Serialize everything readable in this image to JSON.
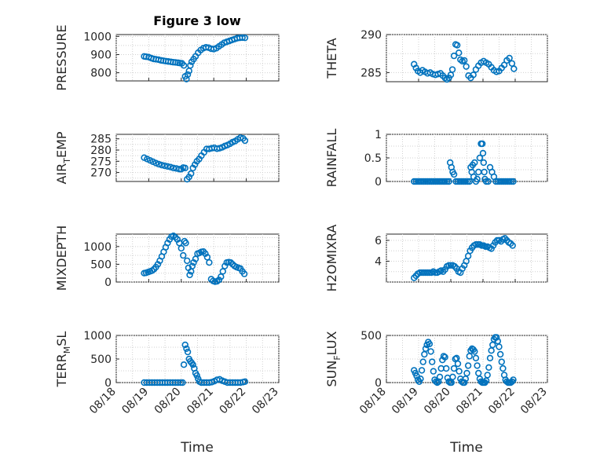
{
  "figure": {
    "title": "Figure 3 low",
    "xlabel": "Time",
    "xticks": [
      "08/18",
      "08/19",
      "08/20",
      "08/21",
      "08/22",
      "08/23"
    ]
  },
  "chart_data": [
    {
      "id": "pressure",
      "type": "scatter",
      "title": "Figure 3 low",
      "ylabel": "PRESSURE",
      "ylabel_sub": "",
      "xlim": [
        0,
        5
      ],
      "ylim": [
        755,
        1010
      ],
      "yticks": [
        "800",
        "900",
        "1000"
      ],
      "ytick_values": [
        800,
        900,
        1000
      ],
      "grid": true,
      "marker": "circle",
      "x": [
        0.86,
        0.92,
        1.0,
        1.08,
        1.15,
        1.22,
        1.3,
        1.38,
        1.45,
        1.52,
        1.6,
        1.68,
        1.75,
        1.82,
        1.9,
        1.96,
        2.02,
        2.08,
        2.12,
        2.16,
        2.2,
        2.24,
        2.28,
        2.32,
        2.38,
        2.44,
        2.52,
        2.6,
        2.68,
        2.76,
        2.84,
        2.92,
        3.0,
        3.08,
        3.16,
        3.24,
        3.32,
        3.4,
        3.48,
        3.56,
        3.64,
        3.72,
        3.8,
        3.88,
        3.96
      ],
      "y": [
        890,
        888,
        886,
        880,
        876,
        874,
        872,
        868,
        866,
        864,
        862,
        860,
        858,
        857,
        855,
        853,
        852,
        840,
        780,
        765,
        790,
        810,
        840,
        860,
        875,
        890,
        910,
        925,
        935,
        940,
        938,
        932,
        930,
        935,
        945,
        955,
        965,
        970,
        975,
        980,
        985,
        990,
        992,
        993,
        992
      ]
    },
    {
      "id": "theta",
      "type": "scatter",
      "title": "",
      "ylabel": "THETA",
      "ylabel_sub": "",
      "xlim": [
        0,
        5
      ],
      "ylim": [
        283.8,
        290
      ],
      "yticks": [
        "285",
        "290"
      ],
      "ytick_values": [
        285,
        290
      ],
      "grid": true,
      "marker": "circle",
      "x": [
        0.86,
        0.92,
        0.98,
        1.05,
        1.12,
        1.2,
        1.28,
        1.36,
        1.44,
        1.52,
        1.6,
        1.68,
        1.75,
        1.82,
        1.88,
        1.94,
        2.0,
        2.05,
        2.1,
        2.15,
        2.2,
        2.25,
        2.3,
        2.36,
        2.42,
        2.48,
        2.55,
        2.62,
        2.7,
        2.78,
        2.86,
        2.94,
        3.02,
        3.1,
        3.18,
        3.26,
        3.34,
        3.42,
        3.5,
        3.58,
        3.66,
        3.74,
        3.82,
        3.9,
        3.96
      ],
      "y": [
        286.1,
        285.6,
        285.2,
        285.0,
        285.3,
        285.1,
        284.9,
        285.0,
        284.8,
        284.7,
        284.8,
        284.9,
        284.6,
        284.3,
        284.1,
        284.3,
        284.7,
        285.4,
        287.2,
        288.7,
        288.6,
        287.6,
        286.7,
        286.5,
        286.6,
        285.8,
        284.6,
        284.3,
        284.7,
        285.4,
        285.9,
        286.3,
        286.5,
        286.3,
        286.1,
        285.7,
        285.3,
        285.1,
        285.2,
        285.6,
        286.0,
        286.6,
        286.9,
        286.2,
        285.5
      ]
    },
    {
      "id": "air_temp",
      "type": "scatter",
      "title": "",
      "ylabel": "AIR",
      "ylabel_sub": "T",
      "ylabel_rest": "EMP",
      "xlim": [
        0,
        5
      ],
      "ylim": [
        266,
        287
      ],
      "yticks": [
        "270",
        "275",
        "280",
        "285"
      ],
      "ytick_values": [
        270,
        275,
        280,
        285
      ],
      "grid": true,
      "marker": "circle",
      "x": [
        0.86,
        0.95,
        1.04,
        1.13,
        1.22,
        1.31,
        1.4,
        1.49,
        1.58,
        1.67,
        1.76,
        1.85,
        1.94,
        2.0,
        2.06,
        2.12,
        2.18,
        2.24,
        2.3,
        2.36,
        2.42,
        2.48,
        2.55,
        2.62,
        2.7,
        2.78,
        2.86,
        2.94,
        3.02,
        3.1,
        3.18,
        3.26,
        3.34,
        3.42,
        3.5,
        3.58,
        3.66,
        3.74,
        3.82,
        3.9,
        3.96
      ],
      "y": [
        276.6,
        276.0,
        275.4,
        274.8,
        274.2,
        273.7,
        273.3,
        273.0,
        272.7,
        272.4,
        272.0,
        271.8,
        271.5,
        271.5,
        272.2,
        272.0,
        267.0,
        268.0,
        269.5,
        272.0,
        273.5,
        275.0,
        276.0,
        277.5,
        279.0,
        280.5,
        280.5,
        280.8,
        281.0,
        280.6,
        280.8,
        281.2,
        281.8,
        282.2,
        282.8,
        283.5,
        284.0,
        284.8,
        285.5,
        285.2,
        284.2
      ]
    },
    {
      "id": "rainfall",
      "type": "scatter",
      "title": "",
      "ylabel": "RAINFALL",
      "ylabel_sub": "",
      "xlim": [
        0,
        5
      ],
      "ylim": [
        0,
        1
      ],
      "yticks": [
        "0",
        "0.5",
        "1"
      ],
      "ytick_values": [
        0,
        0.5,
        1
      ],
      "grid": true,
      "marker": "circle",
      "x": [
        0.86,
        0.92,
        0.98,
        1.04,
        1.1,
        1.16,
        1.22,
        1.28,
        1.34,
        1.4,
        1.46,
        1.52,
        1.58,
        1.64,
        1.7,
        1.76,
        1.82,
        1.88,
        1.94,
        1.98,
        2.02,
        2.06,
        2.1,
        2.16,
        2.22,
        2.28,
        2.34,
        2.4,
        2.46,
        2.52,
        2.58,
        2.62,
        2.65,
        2.68,
        2.71,
        2.74,
        2.78,
        2.82,
        2.86,
        2.9,
        2.94,
        2.98,
        3.0,
        3.02,
        3.04,
        3.06,
        3.1,
        3.16,
        3.22,
        3.28,
        3.34,
        3.4,
        3.46,
        3.52,
        3.58,
        3.64,
        3.7,
        3.76,
        3.82,
        3.88,
        3.94
      ],
      "y": [
        0,
        0,
        0,
        0,
        0,
        0,
        0,
        0,
        0,
        0,
        0,
        0,
        0,
        0,
        0,
        0,
        0,
        0,
        0,
        0.4,
        0.3,
        0.2,
        0.15,
        0,
        0,
        0,
        0,
        0,
        0,
        0,
        0,
        0.3,
        0.2,
        0.35,
        0.1,
        0.4,
        0,
        0.05,
        0.2,
        0.5,
        0.8,
        0.8,
        0.6,
        0.4,
        0.2,
        0.05,
        0,
        0,
        0.3,
        0.2,
        0.1,
        0,
        0,
        0,
        0,
        0,
        0,
        0,
        0,
        0,
        0
      ]
    },
    {
      "id": "mixdepth",
      "type": "scatter",
      "title": "",
      "ylabel": "MIXDEPTH",
      "ylabel_sub": "",
      "xlim": [
        0,
        5
      ],
      "ylim": [
        0,
        1350
      ],
      "yticks": [
        "0",
        "500",
        "1000"
      ],
      "ytick_values": [
        0,
        500,
        1000
      ],
      "grid": true,
      "marker": "circle",
      "x": [
        0.86,
        0.92,
        0.98,
        1.04,
        1.1,
        1.16,
        1.22,
        1.28,
        1.34,
        1.4,
        1.46,
        1.52,
        1.58,
        1.64,
        1.7,
        1.76,
        1.82,
        1.88,
        1.94,
        2.0,
        2.06,
        2.1,
        2.14,
        2.18,
        2.22,
        2.26,
        2.3,
        2.34,
        2.38,
        2.44,
        2.5,
        2.56,
        2.62,
        2.68,
        2.74,
        2.8,
        2.86,
        2.92,
        2.98,
        3.04,
        3.1,
        3.16,
        3.22,
        3.28,
        3.34,
        3.4,
        3.46,
        3.52,
        3.58,
        3.64,
        3.7,
        3.76,
        3.82,
        3.88,
        3.94
      ],
      "y": [
        250,
        260,
        280,
        300,
        320,
        360,
        420,
        500,
        600,
        720,
        850,
        980,
        1100,
        1200,
        1280,
        1300,
        1260,
        1200,
        1100,
        950,
        750,
        1150,
        1100,
        600,
        400,
        200,
        300,
        450,
        550,
        650,
        800,
        820,
        850,
        860,
        800,
        700,
        550,
        80,
        30,
        10,
        20,
        60,
        150,
        300,
        450,
        550,
        560,
        550,
        500,
        450,
        420,
        400,
        380,
        300,
        230
      ]
    },
    {
      "id": "h2omixra",
      "type": "scatter",
      "title": "",
      "ylabel": "H2OMIXRA",
      "ylabel_sub": "",
      "xlim": [
        0,
        5
      ],
      "ylim": [
        2,
        6.6
      ],
      "yticks": [
        "4",
        "6"
      ],
      "ytick_values": [
        4,
        6
      ],
      "grid": true,
      "marker": "circle",
      "x": [
        0.86,
        0.92,
        0.98,
        1.04,
        1.1,
        1.16,
        1.22,
        1.28,
        1.34,
        1.4,
        1.46,
        1.52,
        1.58,
        1.64,
        1.7,
        1.76,
        1.82,
        1.88,
        1.94,
        2.0,
        2.06,
        2.12,
        2.18,
        2.24,
        2.3,
        2.36,
        2.42,
        2.48,
        2.54,
        2.6,
        2.66,
        2.72,
        2.78,
        2.84,
        2.9,
        2.96,
        3.02,
        3.08,
        3.14,
        3.2,
        3.26,
        3.32,
        3.38,
        3.44,
        3.5,
        3.56,
        3.62,
        3.68,
        3.74,
        3.8,
        3.86,
        3.92
      ],
      "y": [
        2.4,
        2.6,
        2.8,
        2.9,
        2.9,
        2.9,
        2.9,
        2.9,
        2.9,
        2.9,
        3.0,
        2.9,
        2.9,
        3.0,
        3.1,
        3.0,
        3.2,
        3.5,
        3.6,
        3.6,
        3.6,
        3.5,
        3.3,
        3.0,
        2.9,
        3.3,
        3.6,
        4.0,
        4.5,
        5.0,
        5.3,
        5.5,
        5.6,
        5.6,
        5.6,
        5.5,
        5.5,
        5.4,
        5.4,
        5.3,
        5.2,
        5.5,
        5.8,
        6.0,
        6.0,
        5.9,
        6.1,
        6.2,
        6.0,
        5.8,
        5.7,
        5.5
      ]
    },
    {
      "id": "terr_msl",
      "type": "scatter",
      "title": "",
      "ylabel": "TERR",
      "ylabel_sub": "M",
      "ylabel_rest": "SL",
      "xlim": [
        0,
        5
      ],
      "ylim": [
        0,
        1000
      ],
      "yticks": [
        "0",
        "500",
        "1000"
      ],
      "ytick_values": [
        0,
        500,
        1000
      ],
      "grid": true,
      "marker": "circle",
      "x": [
        0.86,
        0.94,
        1.02,
        1.1,
        1.18,
        1.26,
        1.34,
        1.42,
        1.5,
        1.58,
        1.66,
        1.74,
        1.82,
        1.9,
        1.98,
        2.04,
        2.08,
        2.12,
        2.16,
        2.2,
        2.24,
        2.28,
        2.32,
        2.36,
        2.4,
        2.44,
        2.48,
        2.52,
        2.56,
        2.62,
        2.7,
        2.78,
        2.86,
        2.94,
        3.02,
        3.1,
        3.18,
        3.26,
        3.34,
        3.42,
        3.5,
        3.58,
        3.66,
        3.74,
        3.82,
        3.9,
        3.96
      ],
      "y": [
        0,
        0,
        0,
        0,
        0,
        0,
        0,
        0,
        0,
        0,
        0,
        0,
        0,
        0,
        0,
        0,
        380,
        800,
        720,
        650,
        500,
        450,
        420,
        380,
        300,
        200,
        150,
        80,
        20,
        0,
        0,
        0,
        0,
        10,
        30,
        60,
        70,
        40,
        20,
        0,
        0,
        0,
        0,
        0,
        0,
        10,
        20
      ]
    },
    {
      "id": "sun_flux",
      "type": "scatter",
      "title": "",
      "ylabel": "SUN",
      "ylabel_sub": "F",
      "ylabel_rest": "LUX",
      "xlim": [
        0,
        5
      ],
      "ylim": [
        0,
        500
      ],
      "yticks": [
        "0",
        "500"
      ],
      "ytick_values": [
        0,
        500
      ],
      "grid": true,
      "marker": "circle",
      "x": [
        0.86,
        0.9,
        0.94,
        0.98,
        1.02,
        1.06,
        1.1,
        1.14,
        1.18,
        1.22,
        1.26,
        1.3,
        1.34,
        1.38,
        1.42,
        1.46,
        1.5,
        1.54,
        1.58,
        1.62,
        1.66,
        1.7,
        1.74,
        1.78,
        1.82,
        1.86,
        1.9,
        1.94,
        1.98,
        2.02,
        2.06,
        2.1,
        2.14,
        2.18,
        2.22,
        2.26,
        2.3,
        2.34,
        2.38,
        2.42,
        2.46,
        2.5,
        2.54,
        2.58,
        2.62,
        2.66,
        2.7,
        2.74,
        2.78,
        2.82,
        2.86,
        2.9,
        2.94,
        2.98,
        3.02,
        3.06,
        3.1,
        3.14,
        3.18,
        3.22,
        3.26,
        3.3,
        3.34,
        3.38,
        3.42,
        3.46,
        3.5,
        3.54,
        3.58,
        3.62,
        3.66,
        3.7,
        3.74,
        3.78,
        3.82,
        3.86,
        3.9,
        3.94
      ],
      "y": [
        130,
        100,
        70,
        30,
        10,
        40,
        130,
        220,
        300,
        360,
        400,
        430,
        410,
        330,
        220,
        120,
        30,
        10,
        0,
        10,
        60,
        150,
        240,
        280,
        270,
        150,
        50,
        10,
        0,
        0,
        60,
        150,
        250,
        260,
        200,
        120,
        40,
        10,
        0,
        0,
        40,
        100,
        180,
        280,
        340,
        360,
        350,
        330,
        260,
        180,
        100,
        40,
        10,
        0,
        0,
        0,
        20,
        80,
        160,
        260,
        340,
        400,
        460,
        480,
        480,
        440,
        380,
        300,
        220,
        150,
        80,
        30,
        10,
        0,
        0,
        0,
        10,
        30
      ]
    }
  ]
}
